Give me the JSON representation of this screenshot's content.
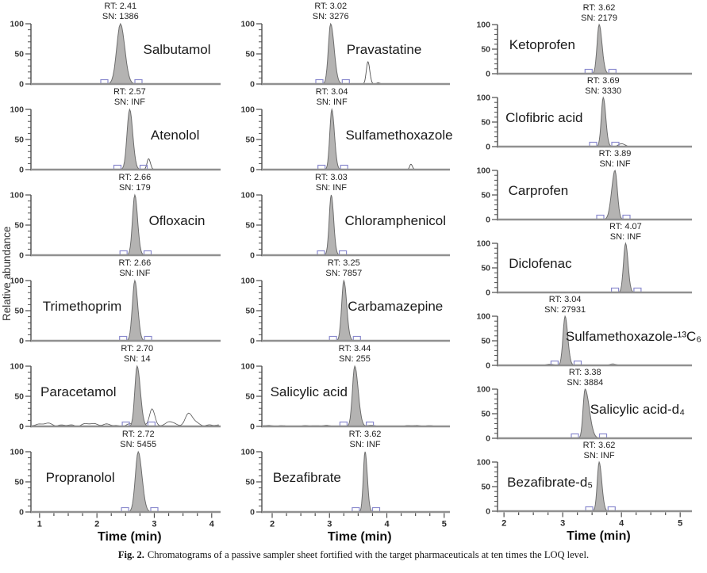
{
  "figure": {
    "caption_label": "Fig. 2.",
    "caption_text": "Chromatograms of a passive sampler sheet fortified with the target pharmaceuticals at ten times the LOQ level."
  },
  "chart_data": {
    "type": "line",
    "description": "Grid of 19 LC-MS extracted-ion chromatograms, one per pharmaceutical compound; each panel shows one gray filled peak with retention time (RT, min) and signal-to-noise (SN) annotation, relative abundance 0-100 on y-axis.",
    "y_label": "Relative abundance",
    "rt_prefix": "RT:",
    "sn_prefix": "SN:",
    "y_ticks": [
      0,
      50,
      100
    ],
    "y_range": [
      0,
      100
    ],
    "colors": {
      "peak_fill": "#b4b3b2",
      "peak_stroke": "#6d6d6d",
      "baseline": "#909090",
      "spine": "#4d4d4d",
      "marker": "#8a8ace",
      "trace": "#525252"
    },
    "columns": [
      {
        "x_label": "Time (min)",
        "x_ticks": [
          1,
          2,
          3,
          4
        ],
        "x_range": [
          0.85,
          4.155
        ],
        "panels": [
          {
            "compound": "Salbutamol",
            "rt": "2.41",
            "sn": "1386",
            "sigma": 0.065,
            "r_mult": 1.15,
            "label_side": "right",
            "label_x": 0.77,
            "extra_peaks": [],
            "noise_amp": 0
          },
          {
            "compound": "Atenolol",
            "rt": "2.57",
            "sn": "INF",
            "sigma": 0.045,
            "r_mult": 1.2,
            "label_side": "right",
            "label_x": 0.76,
            "extra_peaks": [
              {
                "x": 2.9,
                "h": 18,
                "sigma": 0.028
              }
            ],
            "noise_amp": 0
          },
          {
            "compound": "Ofloxacin",
            "rt": "2.66",
            "sn": "179",
            "sigma": 0.04,
            "r_mult": 1.2,
            "label_side": "right",
            "label_x": 0.77,
            "extra_peaks": [],
            "noise_amp": 0
          },
          {
            "compound": "Trimethoprim",
            "rt": "2.66",
            "sn": "INF",
            "sigma": 0.042,
            "r_mult": 1.2,
            "label_side": "left",
            "label_x": 0.27,
            "extra_peaks": [],
            "noise_amp": 0
          },
          {
            "compound": "Paracetamol",
            "rt": "2.70",
            "sn": "14",
            "sigma": 0.04,
            "r_mult": 1.4,
            "label_side": "left",
            "label_x": 0.25,
            "extra_peaks": [
              {
                "x": 2.96,
                "h": 24,
                "sigma": 0.04
              },
              {
                "x": 3.25,
                "h": 7,
                "sigma": 0.05
              },
              {
                "x": 3.6,
                "h": 18,
                "sigma": 0.055
              }
            ],
            "noise_amp": 5
          },
          {
            "compound": "Propranolol",
            "rt": "2.72",
            "sn": "5455",
            "sigma": 0.05,
            "r_mult": 1.3,
            "label_side": "left",
            "label_x": 0.26,
            "extra_peaks": [],
            "noise_amp": 0
          }
        ]
      },
      {
        "x_label": "Time (min)",
        "x_ticks": [
          2,
          3,
          4,
          5
        ],
        "x_range": [
          1.82,
          5.1
        ],
        "panels": [
          {
            "compound": "Pravastatine",
            "rt": "3.02",
            "sn": "3276",
            "sigma": 0.04,
            "r_mult": 1.5,
            "label_side": "right",
            "label_x": 0.65,
            "extra_peaks": [
              {
                "x": 3.67,
                "h": 37,
                "sigma": 0.028
              },
              {
                "x": 3.85,
                "h": 2,
                "sigma": 0.03
              }
            ],
            "noise_amp": 0
          },
          {
            "compound": "Sulfamethoxazole",
            "rt": "3.04",
            "sn": "INF",
            "sigma": 0.035,
            "r_mult": 1.3,
            "label_side": "right",
            "label_x": 0.73,
            "extra_peaks": [
              {
                "x": 4.42,
                "h": 9,
                "sigma": 0.022
              }
            ],
            "noise_amp": 0
          },
          {
            "compound": "Chloramphenicol",
            "rt": "3.03",
            "sn": "INF",
            "sigma": 0.035,
            "r_mult": 1.2,
            "label_side": "right",
            "label_x": 0.71,
            "extra_peaks": [],
            "noise_amp": 0
          },
          {
            "compound": "Carbamazepine",
            "rt": "3.25",
            "sn": "7857",
            "sigma": 0.038,
            "r_mult": 1.3,
            "label_side": "right",
            "label_x": 0.71,
            "extra_peaks": [],
            "noise_amp": 0
          },
          {
            "compound": "Salicylic acid",
            "rt": "3.44",
            "sn": "255",
            "sigma": 0.04,
            "r_mult": 1.5,
            "label_side": "left",
            "label_x": 0.25,
            "extra_peaks": [],
            "noise_amp": 1.6
          },
          {
            "compound": "Bezafibrate",
            "rt": "3.62",
            "sn": "INF",
            "sigma": 0.03,
            "r_mult": 1.3,
            "label_side": "left",
            "label_x": 0.24,
            "extra_peaks": [],
            "noise_amp": 0
          }
        ]
      },
      {
        "x_label": "Time (min)",
        "x_ticks": [
          2,
          3,
          4,
          5
        ],
        "x_range": [
          1.89,
          5.2
        ],
        "panels": [
          {
            "compound": "Ketoprofen",
            "rt": "3.62",
            "sn": "2179",
            "sigma": 0.035,
            "r_mult": 1.4,
            "label_side": "left",
            "label_x": 0.23,
            "extra_peaks": [],
            "noise_amp": 0
          },
          {
            "compound": "Clofibric acid",
            "rt": "3.69",
            "sn": "3330",
            "sigma": 0.033,
            "r_mult": 1.3,
            "label_side": "left",
            "label_x": 0.24,
            "extra_peaks": [
              {
                "x": 4.0,
                "h": 6,
                "sigma": 0.05
              }
            ],
            "noise_amp": 0
          },
          {
            "compound": "Carprofen",
            "rt": "3.89",
            "sn": "INF",
            "sigma": 0.04,
            "l_mult": 1.4,
            "r_mult": 1.0,
            "label_side": "left",
            "label_x": 0.21,
            "extra_peaks": [],
            "noise_amp": 0
          },
          {
            "compound": "Diclofenac",
            "rt": "4.07",
            "sn": "INF",
            "sigma": 0.035,
            "r_mult": 1.2,
            "label_side": "left",
            "label_x": 0.22,
            "extra_peaks": [],
            "noise_amp": 0
          },
          {
            "compound": "Sulfamethoxazole-¹³C₆",
            "rt": "3.04",
            "sn": "27931",
            "sigma": 0.035,
            "r_mult": 1.3,
            "label_side": "right",
            "label_x": 0.7,
            "extra_peaks": [
              {
                "x": 2.78,
                "h": 2.5,
                "sigma": 0.06,
                "filled": true
              },
              {
                "x": 3.85,
                "h": 3,
                "sigma": 0.05,
                "filled": true
              }
            ],
            "noise_amp": 0
          },
          {
            "compound": "Salicylic acid-d₄",
            "rt": "3.38",
            "sn": "3884",
            "sigma": 0.033,
            "r_mult": 2.2,
            "label_side": "right",
            "label_x": 0.72,
            "extra_peaks": [],
            "noise_amp": 0
          },
          {
            "compound": "Bezafibrate-d₅",
            "rt": "3.62",
            "sn": "INF",
            "sigma": 0.032,
            "r_mult": 1.4,
            "label_side": "left",
            "label_x": 0.27,
            "extra_peaks": [],
            "noise_amp": 0
          }
        ]
      }
    ]
  }
}
